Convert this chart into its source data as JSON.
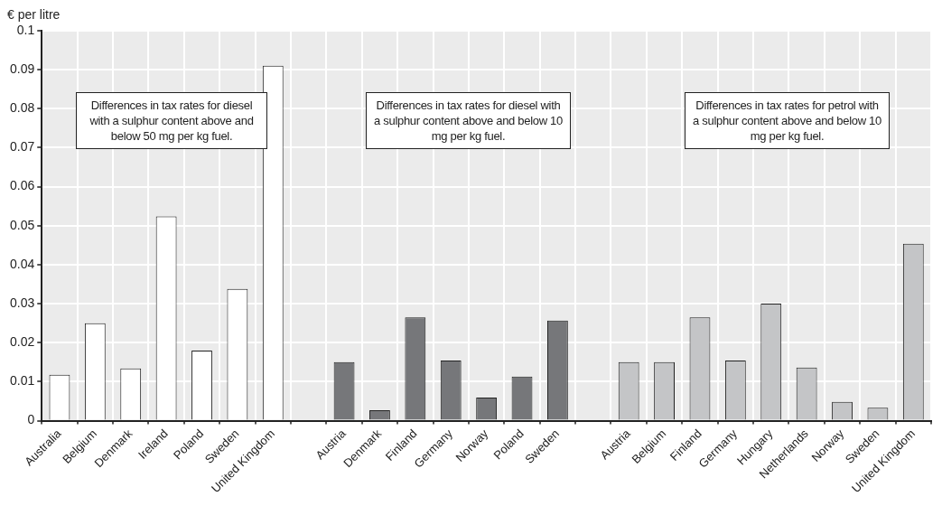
{
  "chart_data": {
    "type": "bar",
    "ylabel": "€ per litre",
    "categories": [
      "Australia",
      "Belgium",
      "Denmark",
      "Ireland",
      "Poland",
      "Sweden",
      "United Kingdom",
      null,
      "Austria",
      "Denmark",
      "Finland",
      "Germany",
      "Norway",
      "Poland",
      "Sweden",
      null,
      "Austria",
      "Belgium",
      "Finland",
      "Germany",
      "Hungary",
      "Netherlands",
      "Norway",
      "Sweden",
      "United Kingdom"
    ],
    "series": [
      {
        "color": "#ffffff",
        "values": [
          0.0118,
          0.025,
          0.0134,
          0.0524,
          0.018,
          0.0338,
          0.091,
          null,
          null,
          null,
          null,
          null,
          null,
          null,
          null,
          null,
          null,
          null,
          null,
          null,
          null,
          null,
          null,
          null,
          null
        ]
      },
      {
        "color": "#76777a",
        "values": [
          null,
          null,
          null,
          null,
          null,
          null,
          null,
          null,
          0.015,
          0.0027,
          0.0265,
          0.0154,
          0.0059,
          0.0113,
          0.0257,
          null,
          null,
          null,
          null,
          null,
          null,
          null,
          null,
          null,
          null
        ]
      },
      {
        "color": "#c4c5c7",
        "values": [
          null,
          null,
          null,
          null,
          null,
          null,
          null,
          null,
          null,
          null,
          null,
          null,
          null,
          null,
          null,
          null,
          0.015,
          0.015,
          0.0265,
          0.0154,
          0.03,
          0.0136,
          0.0048,
          0.0033,
          0.0454
        ]
      }
    ],
    "ylim": [
      0,
      0.1
    ],
    "yticks": [
      0,
      0.01,
      0.02,
      0.03,
      0.04,
      0.05,
      0.06,
      0.07,
      0.08,
      0.09,
      0.1
    ],
    "grid": true,
    "legend": false,
    "annotations": [
      "Differences in tax rates for diesel with a sulphur content above and below 50 mg per kg fuel.",
      "Differences in tax rates for diesel with a sulphur content above and below 10 mg per kg fuel.",
      "Differences in tax rates for petrol with a sulphur content above and below 10 mg per kg fuel."
    ]
  }
}
